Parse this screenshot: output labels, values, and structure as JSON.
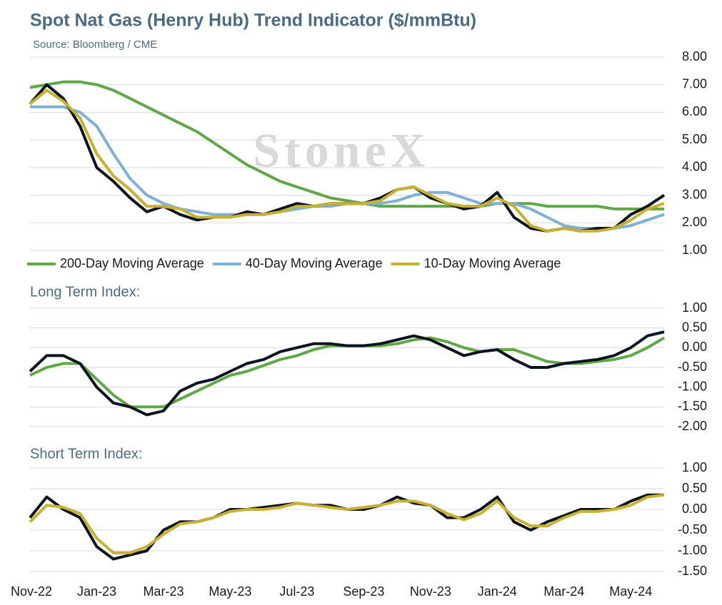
{
  "chart_data": [
    {
      "type": "line",
      "title": "Spot Nat Gas (Henry Hub) Trend Indicator ($/mmBtu)",
      "subtitle": "Source: Bloomberg / CME",
      "watermark": "StoneX",
      "ylim": [
        1,
        8
      ],
      "yticks": [
        {
          "value": 1,
          "label": "1.00"
        },
        {
          "value": 2,
          "label": "2.00"
        },
        {
          "value": 3,
          "label": "3.00"
        },
        {
          "value": 4,
          "label": "4.00"
        },
        {
          "value": 5,
          "label": "5.00"
        },
        {
          "value": 6,
          "label": "6.00"
        },
        {
          "value": 7,
          "label": "7.00"
        },
        {
          "value": 8,
          "label": "8.00"
        }
      ],
      "grid": true,
      "series": [
        {
          "name": "200-Day Moving Average",
          "color": "#5fa845",
          "values": [
            6.9,
            7.0,
            7.1,
            7.1,
            7.0,
            6.8,
            6.5,
            6.2,
            5.9,
            5.6,
            5.3,
            4.9,
            4.5,
            4.1,
            3.8,
            3.5,
            3.3,
            3.1,
            2.9,
            2.8,
            2.7,
            2.6,
            2.6,
            2.6,
            2.6,
            2.6,
            2.6,
            2.6,
            2.7,
            2.7,
            2.7,
            2.6,
            2.6,
            2.6,
            2.6,
            2.5,
            2.5,
            2.5,
            2.5
          ]
        },
        {
          "name": "40-Day Moving Average",
          "color": "#7fb0d8",
          "values": [
            6.2,
            6.2,
            6.2,
            6.0,
            5.5,
            4.5,
            3.6,
            3.0,
            2.7,
            2.5,
            2.4,
            2.3,
            2.3,
            2.3,
            2.3,
            2.4,
            2.5,
            2.6,
            2.6,
            2.7,
            2.7,
            2.7,
            2.8,
            3.0,
            3.1,
            3.1,
            2.9,
            2.7,
            2.7,
            2.7,
            2.5,
            2.2,
            1.9,
            1.8,
            1.8,
            1.8,
            1.9,
            2.1,
            2.3
          ]
        },
        {
          "color": "#0d1421",
          "values": [
            6.3,
            7.0,
            6.5,
            5.5,
            4.0,
            3.5,
            2.9,
            2.4,
            2.6,
            2.3,
            2.1,
            2.2,
            2.2,
            2.4,
            2.3,
            2.5,
            2.7,
            2.6,
            2.7,
            2.7,
            2.7,
            2.9,
            3.2,
            3.3,
            2.9,
            2.7,
            2.5,
            2.6,
            3.1,
            2.2,
            1.8,
            1.7,
            1.8,
            1.7,
            1.8,
            1.8,
            2.3,
            2.6,
            3.0
          ]
        },
        {
          "name": "10-Day Moving Average",
          "color": "#c8b030",
          "values": [
            6.3,
            6.8,
            6.4,
            5.8,
            4.5,
            3.7,
            3.2,
            2.6,
            2.6,
            2.5,
            2.2,
            2.2,
            2.2,
            2.3,
            2.3,
            2.4,
            2.6,
            2.6,
            2.7,
            2.7,
            2.7,
            2.8,
            3.2,
            3.3,
            3.0,
            2.7,
            2.6,
            2.6,
            2.9,
            2.6,
            1.9,
            1.7,
            1.8,
            1.7,
            1.7,
            1.8,
            2.1,
            2.5,
            2.7
          ]
        }
      ],
      "legend": "bottom"
    },
    {
      "type": "line",
      "title": "Long Term Index:",
      "ylim": [
        -2,
        1
      ],
      "yticks": [
        {
          "value": -2,
          "label": "-2.00"
        },
        {
          "value": -1.5,
          "label": "-1.50"
        },
        {
          "value": -1,
          "label": "-1.00"
        },
        {
          "value": -0.5,
          "label": "-0.50"
        },
        {
          "value": 0,
          "label": "0.00"
        },
        {
          "value": 0.5,
          "label": "0.50"
        },
        {
          "value": 1,
          "label": "1.00"
        }
      ],
      "grid": true,
      "series": [
        {
          "color": "#5fa845",
          "values": [
            -0.7,
            -0.5,
            -0.4,
            -0.4,
            -0.8,
            -1.2,
            -1.5,
            -1.5,
            -1.5,
            -1.3,
            -1.1,
            -0.9,
            -0.7,
            -0.6,
            -0.45,
            -0.3,
            -0.2,
            -0.05,
            0.05,
            0.05,
            0.05,
            0.05,
            0.1,
            0.2,
            0.25,
            0.15,
            0.0,
            -0.1,
            -0.05,
            -0.05,
            -0.2,
            -0.35,
            -0.4,
            -0.4,
            -0.35,
            -0.3,
            -0.2,
            0.0,
            0.25
          ]
        },
        {
          "color": "#0d1421",
          "values": [
            -0.6,
            -0.2,
            -0.2,
            -0.4,
            -1.0,
            -1.4,
            -1.5,
            -1.7,
            -1.6,
            -1.1,
            -0.9,
            -0.8,
            -0.6,
            -0.4,
            -0.3,
            -0.1,
            0.0,
            0.1,
            0.1,
            0.05,
            0.05,
            0.1,
            0.2,
            0.3,
            0.2,
            0.0,
            -0.2,
            -0.1,
            -0.05,
            -0.3,
            -0.5,
            -0.5,
            -0.4,
            -0.35,
            -0.3,
            -0.2,
            0.0,
            0.3,
            0.4
          ]
        }
      ]
    },
    {
      "type": "line",
      "title": "Short Term Index:",
      "ylim": [
        -1.5,
        1
      ],
      "yticks": [
        {
          "value": -1.5,
          "label": "-1.50"
        },
        {
          "value": -1,
          "label": "-1.00"
        },
        {
          "value": -0.5,
          "label": "-0.50"
        },
        {
          "value": 0,
          "label": "0.00"
        },
        {
          "value": 0.5,
          "label": "0.50"
        },
        {
          "value": 1,
          "label": "1.00"
        }
      ],
      "grid": true,
      "categories": [
        "Nov-22",
        null,
        null,
        null,
        "Jan-23",
        null,
        null,
        null,
        "Mar-23",
        null,
        null,
        null,
        "May-23",
        null,
        null,
        null,
        "Jul-23",
        null,
        null,
        null,
        "Sep-23",
        null,
        null,
        null,
        "Nov-23",
        null,
        null,
        null,
        "Jan-24",
        null,
        null,
        null,
        "Mar-24",
        null,
        null,
        null,
        "May-24",
        null,
        null
      ],
      "series": [
        {
          "color": "#0d1421",
          "values": [
            -0.2,
            0.3,
            0.0,
            -0.2,
            -0.9,
            -1.2,
            -1.1,
            -1.0,
            -0.5,
            -0.3,
            -0.3,
            -0.2,
            0.0,
            0.0,
            0.05,
            0.1,
            0.15,
            0.1,
            0.1,
            0.0,
            0.0,
            0.1,
            0.3,
            0.15,
            0.1,
            -0.2,
            -0.2,
            0.0,
            0.3,
            -0.3,
            -0.5,
            -0.3,
            -0.15,
            0.0,
            0.0,
            0.0,
            0.2,
            0.35,
            0.35
          ]
        },
        {
          "color": "#c8b030",
          "values": [
            -0.3,
            0.1,
            0.05,
            -0.1,
            -0.7,
            -1.05,
            -1.05,
            -0.9,
            -0.6,
            -0.35,
            -0.3,
            -0.2,
            -0.05,
            0.0,
            0.0,
            0.05,
            0.15,
            0.1,
            0.05,
            0.0,
            0.05,
            0.1,
            0.2,
            0.2,
            0.1,
            -0.1,
            -0.25,
            -0.1,
            0.2,
            -0.2,
            -0.4,
            -0.4,
            -0.2,
            -0.05,
            -0.05,
            0.0,
            0.1,
            0.3,
            0.35
          ]
        }
      ]
    }
  ]
}
